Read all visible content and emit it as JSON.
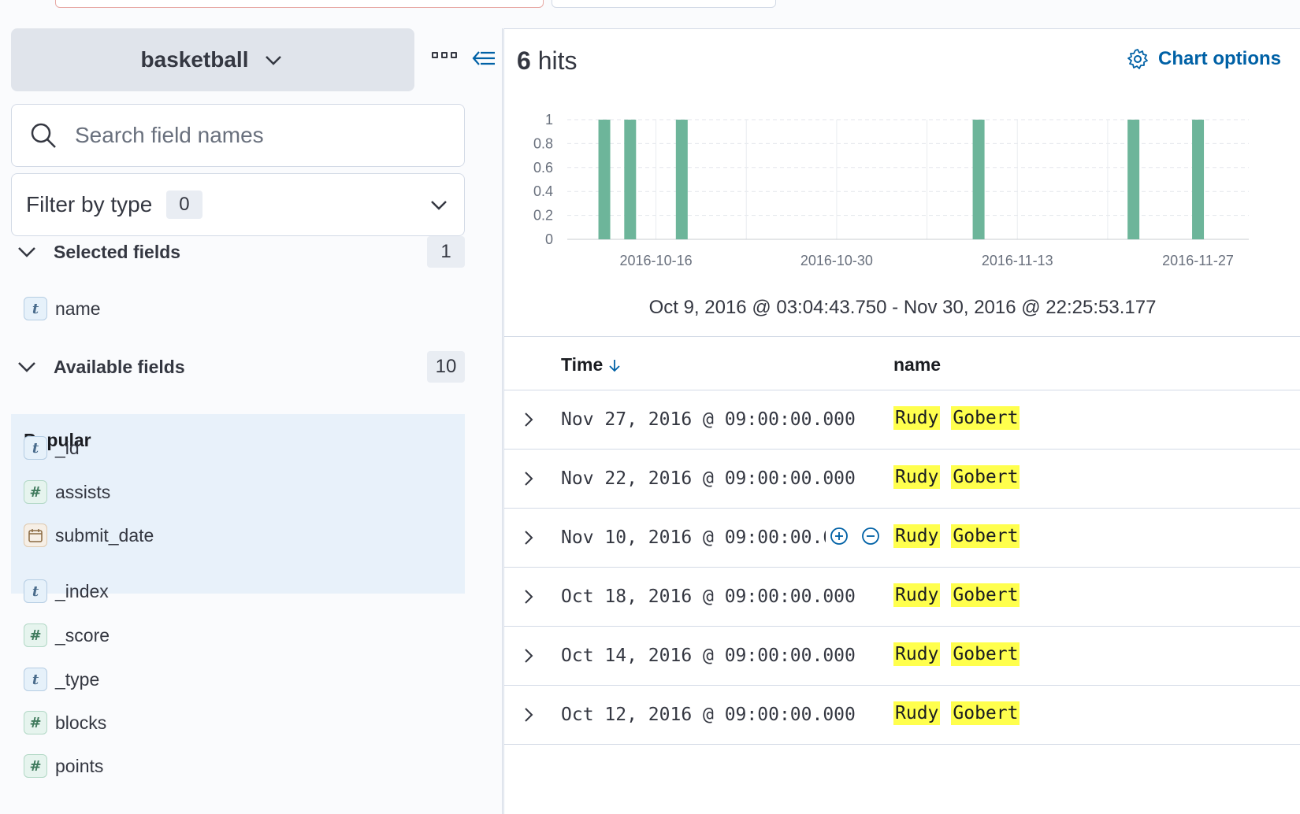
{
  "sidebar": {
    "index_pattern": "basketball",
    "search_placeholder": "Search field names",
    "filter_label": "Filter by type",
    "filter_count": "0",
    "selected_section": {
      "label": "Selected fields",
      "count": "1",
      "fields": [
        {
          "type": "string",
          "name": "name"
        }
      ]
    },
    "available_section": {
      "label": "Available fields",
      "count": "10"
    },
    "popular_label": "Popular",
    "popular_fields": [
      {
        "type": "string",
        "name": "_id"
      },
      {
        "type": "number",
        "name": "assists"
      },
      {
        "type": "date",
        "name": "submit_date"
      }
    ],
    "other_fields": [
      {
        "type": "string",
        "name": "_index"
      },
      {
        "type": "number",
        "name": "_score"
      },
      {
        "type": "string",
        "name": "_type"
      },
      {
        "type": "number",
        "name": "blocks"
      },
      {
        "type": "number",
        "name": "points"
      }
    ]
  },
  "main": {
    "hits_count": "6",
    "hits_label": "hits",
    "chart_options_label": "Chart options",
    "time_range": "Oct 9, 2016 @ 03:04:43.750 - Nov 30, 2016 @ 22:25:53.177",
    "columns": {
      "time": "Time",
      "name": "name"
    },
    "rows": [
      {
        "time": "Nov 27, 2016 @ 09:00:00.000",
        "first": "Rudy",
        "last": "Gobert"
      },
      {
        "time": "Nov 22, 2016 @ 09:00:00.000",
        "first": "Rudy",
        "last": "Gobert"
      },
      {
        "time": "Nov 10, 2016 @ 09:00:00.000",
        "first": "Rudy",
        "last": "Gobert"
      },
      {
        "time": "Oct 18, 2016 @ 09:00:00.000",
        "first": "Rudy",
        "last": "Gobert"
      },
      {
        "time": "Oct 14, 2016 @ 09:00:00.000",
        "first": "Rudy",
        "last": "Gobert"
      },
      {
        "time": "Oct 12, 2016 @ 09:00:00.000",
        "first": "Rudy",
        "last": "Gobert"
      }
    ]
  },
  "colors": {
    "bar": "#6db59a",
    "accent": "#0061a6",
    "highlight": "#ffff4d"
  },
  "chart_data": {
    "type": "bar",
    "title": "",
    "xlabel": "",
    "ylabel": "",
    "ylim": [
      0,
      1
    ],
    "yticks": [
      "0",
      "0.2",
      "0.4",
      "0.6",
      "0.8",
      "1"
    ],
    "xticks": [
      "2016-10-16",
      "2016-10-30",
      "2016-11-13",
      "2016-11-27"
    ],
    "x": [
      "2016-10-12",
      "2016-10-14",
      "2016-10-18",
      "2016-11-10",
      "2016-11-22",
      "2016-11-27"
    ],
    "values": [
      1,
      1,
      1,
      1,
      1,
      1
    ]
  }
}
